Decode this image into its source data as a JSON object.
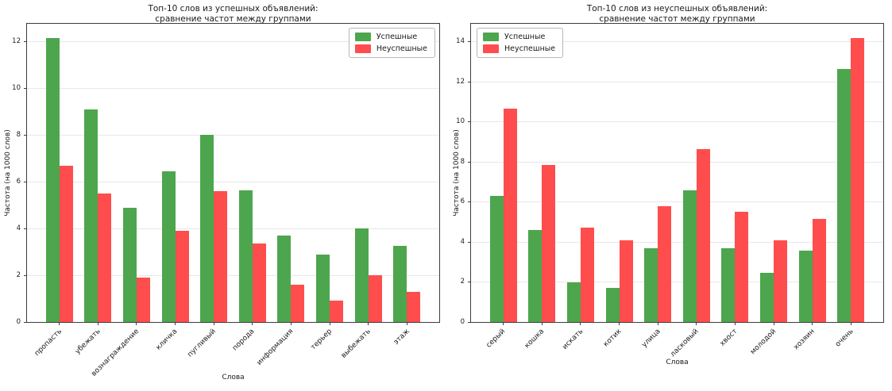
{
  "figure": {
    "kind": "matplotlib-style grouped bar charts, side by side"
  },
  "chart_data": [
    {
      "type": "bar",
      "title_line1": "Топ-10 слов из успешных объявлений:",
      "title_line2": "сравнение частот между группами",
      "xlabel": "Слова",
      "ylabel": "Частота (на 1000 слов)",
      "categories": [
        "пропасть",
        "убежать",
        "вознаграждение",
        "кличка",
        "пугливый",
        "порода",
        "информация",
        "терьер",
        "выбежать",
        "этаж"
      ],
      "series": [
        {
          "name": "Успешные",
          "color": "#4DA64D",
          "values": [
            12.15,
            9.1,
            4.9,
            6.45,
            8.0,
            5.65,
            3.7,
            2.9,
            4.0,
            3.25
          ]
        },
        {
          "name": "Неуспешные",
          "color": "#FF4D4D",
          "values": [
            6.7,
            5.5,
            1.9,
            3.9,
            5.6,
            3.35,
            1.6,
            0.9,
            2.0,
            1.3
          ]
        }
      ],
      "yticks": [
        0,
        2,
        4,
        6,
        8,
        10,
        12
      ],
      "ylim": [
        0,
        12.76
      ],
      "grid": true,
      "legend_position": "top-right"
    },
    {
      "type": "bar",
      "title_line1": "Топ-10 слов из неуспешных объявлений:",
      "title_line2": "сравнение частот между группами",
      "xlabel": "Слова",
      "ylabel": "Частота (на 1000 слов)",
      "categories": [
        "серый",
        "кошка",
        "искать",
        "котик",
        "улица",
        "ласковый",
        "хвост",
        "молодой",
        "хозяин",
        "очень"
      ],
      "series": [
        {
          "name": "Успешные",
          "color": "#4DA64D",
          "values": [
            6.3,
            4.6,
            2.0,
            1.7,
            3.7,
            6.6,
            3.7,
            2.45,
            3.55,
            12.65
          ]
        },
        {
          "name": "Неуспешные",
          "color": "#FF4D4D",
          "values": [
            10.65,
            7.85,
            4.7,
            4.1,
            5.8,
            8.65,
            5.5,
            4.1,
            5.15,
            14.2
          ]
        }
      ],
      "yticks": [
        0,
        2,
        4,
        6,
        8,
        10,
        12,
        14
      ],
      "ylim": [
        0,
        14.91
      ],
      "grid": true,
      "legend_position": "top-left"
    }
  ]
}
